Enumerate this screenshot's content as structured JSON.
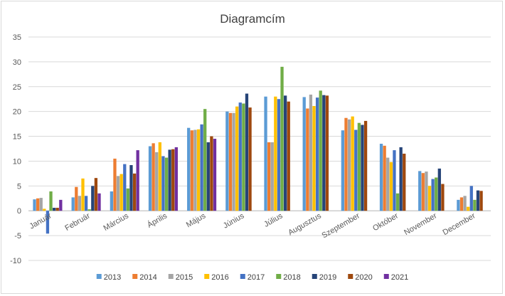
{
  "chart_data": {
    "type": "bar",
    "title": "Diagramcím",
    "xlabel": "",
    "ylabel": "",
    "ylim": [
      -10,
      35
    ],
    "yticks": [
      -10,
      -5,
      0,
      5,
      10,
      15,
      20,
      25,
      30,
      35
    ],
    "grid": true,
    "legend_position": "bottom",
    "categories": [
      "Január",
      "Február",
      "Március",
      "Április",
      "Május",
      "Június",
      "Július",
      "Augusztus",
      "Szeptember",
      "Október",
      "November",
      "December"
    ],
    "series": [
      {
        "name": "2013",
        "color": "#5b9bd5",
        "values": [
          2.3,
          2.7,
          3.9,
          13.0,
          16.7,
          20.0,
          23.0,
          22.9,
          16.2,
          13.5,
          8.0,
          2.2
        ]
      },
      {
        "name": "2014",
        "color": "#ed7d31",
        "values": [
          2.5,
          4.8,
          10.5,
          13.6,
          16.2,
          19.7,
          13.8,
          20.6,
          18.7,
          13.1,
          7.6,
          2.7
        ]
      },
      {
        "name": "2015",
        "color": "#a5a5a5",
        "values": [
          2.6,
          3.0,
          7.0,
          11.8,
          16.3,
          19.7,
          13.8,
          23.4,
          18.4,
          10.7,
          7.9,
          3.0
        ]
      },
      {
        "name": "2016",
        "color": "#ffc000",
        "values": [
          0.4,
          6.5,
          7.4,
          13.8,
          16.4,
          21.0,
          23.0,
          21.1,
          19.0,
          9.8,
          5.0,
          0.8
        ]
      },
      {
        "name": "2017",
        "color": "#4472c4",
        "values": [
          -4.6,
          3.0,
          9.4,
          11.0,
          17.4,
          21.8,
          22.5,
          22.8,
          16.3,
          12.2,
          6.4,
          5.0
        ]
      },
      {
        "name": "2018",
        "color": "#70ad47",
        "values": [
          3.9,
          0.3,
          4.5,
          10.7,
          20.5,
          21.6,
          29.0,
          24.2,
          17.7,
          3.5,
          6.7,
          2.2
        ]
      },
      {
        "name": "2019",
        "color": "#264478",
        "values": [
          0.6,
          5.0,
          9.2,
          12.3,
          13.8,
          23.6,
          23.2,
          23.3,
          17.3,
          12.8,
          8.5,
          4.1
        ]
      },
      {
        "name": "2020",
        "color": "#9e480e",
        "values": [
          0.6,
          6.6,
          7.5,
          12.4,
          15.0,
          20.8,
          22.0,
          23.2,
          18.1,
          11.5,
          5.4,
          4.0
        ]
      },
      {
        "name": "2021",
        "color": "#7030a0",
        "values": [
          2.2,
          3.5,
          12.2,
          12.8,
          14.5,
          null,
          null,
          null,
          null,
          null,
          null,
          null
        ]
      }
    ]
  }
}
